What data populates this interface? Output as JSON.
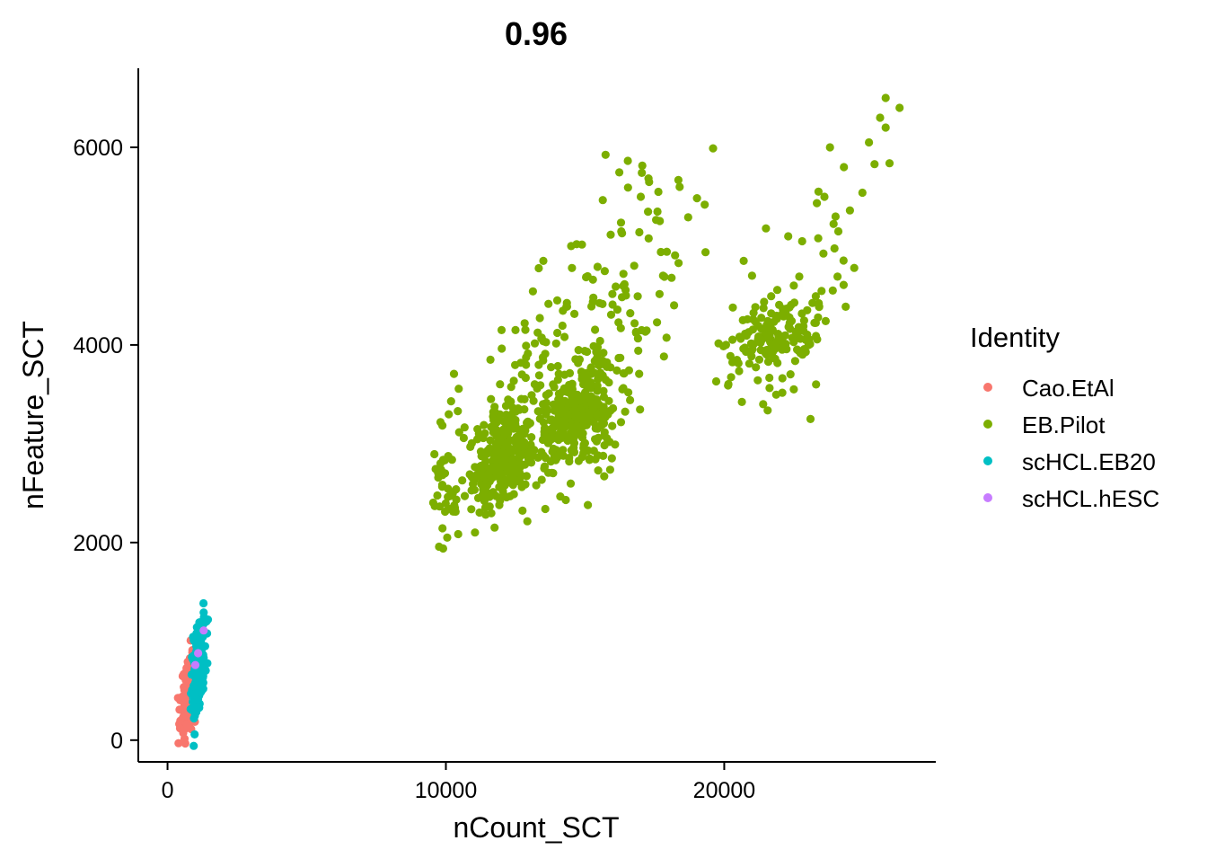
{
  "chart_data": {
    "type": "scatter",
    "title": "0.96",
    "xlabel": "nCount_SCT",
    "ylabel": "nFeature_SCT",
    "xlim": [
      -1050,
      27600
    ],
    "ylim": [
      -220,
      6800
    ],
    "x_ticks": [
      0,
      10000,
      20000
    ],
    "y_ticks": [
      0,
      2000,
      4000,
      6000
    ],
    "x_tick_labels": [
      "0",
      "10000",
      "20000"
    ],
    "y_tick_labels": [
      "0",
      "2000",
      "4000",
      "6000"
    ],
    "grid": false,
    "legend": {
      "title": "Identity",
      "position": "right"
    },
    "series": [
      {
        "name": "Cao.EtAl",
        "color": "#F8766D",
        "clusters": [
          {
            "cx": 800,
            "cy": 500,
            "sx": 150,
            "sy": 180,
            "n": 240,
            "slope": 0.55,
            "seed": 11
          }
        ],
        "points": [
          [
            450,
            120
          ],
          [
            600,
            110
          ],
          [
            980,
            870
          ],
          [
            1050,
            820
          ],
          [
            700,
            160
          ]
        ]
      },
      {
        "name": "EB.Pilot",
        "color": "#7CAE00",
        "clusters": [
          {
            "cx": 12000,
            "cy": 2850,
            "sx": 650,
            "sy": 260,
            "n": 260,
            "slope": 0.18,
            "seed": 21
          },
          {
            "cx": 14700,
            "cy": 3250,
            "sx": 750,
            "sy": 260,
            "n": 300,
            "slope": 0.16,
            "seed": 22
          },
          {
            "cx": 15800,
            "cy": 4250,
            "sx": 1400,
            "sy": 550,
            "n": 110,
            "slope": 0.28,
            "seed": 23
          },
          {
            "cx": 21600,
            "cy": 4050,
            "sx": 900,
            "sy": 240,
            "n": 160,
            "slope": 0.05,
            "seed": 24
          },
          {
            "cx": 10000,
            "cy": 2700,
            "sx": 250,
            "sy": 300,
            "n": 35,
            "slope": 0.6,
            "seed": 25
          },
          {
            "cx": 13000,
            "cy": 3700,
            "sx": 800,
            "sy": 500,
            "n": 60,
            "slope": 0.3,
            "seed": 26
          },
          {
            "cx": 23500,
            "cy": 4900,
            "sx": 900,
            "sy": 450,
            "n": 18,
            "slope": 0.3,
            "seed": 27
          }
        ],
        "points": [
          [
            9900,
            1940
          ],
          [
            10050,
            2050
          ],
          [
            11600,
            3850
          ],
          [
            12500,
            4150
          ],
          [
            13500,
            4850
          ],
          [
            14500,
            5000
          ],
          [
            15100,
            2380
          ],
          [
            16300,
            5150
          ],
          [
            17000,
            5500
          ],
          [
            17300,
            5650
          ],
          [
            17600,
            5350
          ],
          [
            18400,
            5600
          ],
          [
            19300,
            5420
          ],
          [
            19600,
            5990
          ],
          [
            20700,
            4850
          ],
          [
            21500,
            5180
          ],
          [
            23100,
            3250
          ],
          [
            23600,
            5500
          ],
          [
            23800,
            6000
          ],
          [
            24300,
            5800
          ],
          [
            24000,
            5300
          ],
          [
            25200,
            6050
          ],
          [
            25400,
            5830
          ],
          [
            25600,
            6300
          ],
          [
            25800,
            6500
          ],
          [
            25800,
            6200
          ],
          [
            26300,
            6400
          ],
          [
            22300,
            5100
          ],
          [
            22800,
            5050
          ],
          [
            24100,
            5150
          ],
          [
            18200,
            4400
          ],
          [
            17800,
            4700
          ],
          [
            14000,
            4450
          ],
          [
            12000,
            4150
          ],
          [
            21000,
            4700
          ],
          [
            22500,
            4600
          ],
          [
            23900,
            4550
          ],
          [
            21400,
            3400
          ],
          [
            22500,
            3550
          ],
          [
            23300,
            3600
          ]
        ]
      },
      {
        "name": "scHCL.EB20",
        "color": "#00BFC4",
        "clusters": [
          {
            "cx": 1100,
            "cy": 700,
            "sx": 120,
            "sy": 220,
            "n": 200,
            "slope": 0.75,
            "seed": 31
          }
        ],
        "points": [
          [
            950,
            220
          ],
          [
            1400,
            1200
          ],
          [
            1450,
            1220
          ],
          [
            1420,
            1080
          ],
          [
            1350,
            950
          ]
        ]
      },
      {
        "name": "scHCL.hESC",
        "color": "#C77CFF",
        "clusters": [],
        "points": [
          [
            1300,
            1110
          ],
          [
            1100,
            880
          ],
          [
            1000,
            760
          ]
        ]
      }
    ]
  }
}
